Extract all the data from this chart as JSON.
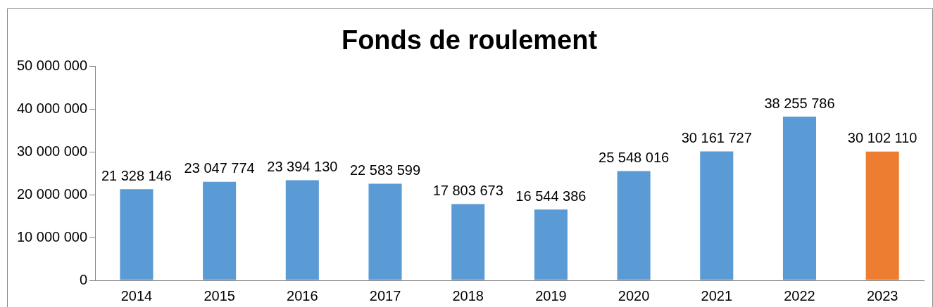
{
  "chart_data": {
    "type": "bar",
    "title": "Fonds de roulement",
    "categories": [
      "2014",
      "2015",
      "2016",
      "2017",
      "2018",
      "2019",
      "2020",
      "2021",
      "2022",
      "2023"
    ],
    "values": [
      21328146,
      23047774,
      23394130,
      22583599,
      17803673,
      16544386,
      25548016,
      30161727,
      38255786,
      30102110
    ],
    "colors": [
      "#5b9bd5",
      "#5b9bd5",
      "#5b9bd5",
      "#5b9bd5",
      "#5b9bd5",
      "#5b9bd5",
      "#5b9bd5",
      "#5b9bd5",
      "#5b9bd5",
      "#ed7d31"
    ],
    "value_labels": [
      "21 328 146",
      "23 047 774",
      "23 394 130",
      "22 583 599",
      "17 803 673",
      "16 544 386",
      "25 548 016",
      "30 161 727",
      "38 255 786",
      "30 102 110"
    ],
    "ylim": [
      0,
      50000000
    ],
    "yticks": [
      {
        "value": 0,
        "label": "0"
      },
      {
        "value": 10000000,
        "label": "10 000 000"
      },
      {
        "value": 20000000,
        "label": "20 000 000"
      },
      {
        "value": 30000000,
        "label": "30 000 000"
      },
      {
        "value": 40000000,
        "label": "40 000 000"
      },
      {
        "value": 50000000,
        "label": "50 000 000"
      }
    ],
    "grid": false,
    "legend": false
  }
}
